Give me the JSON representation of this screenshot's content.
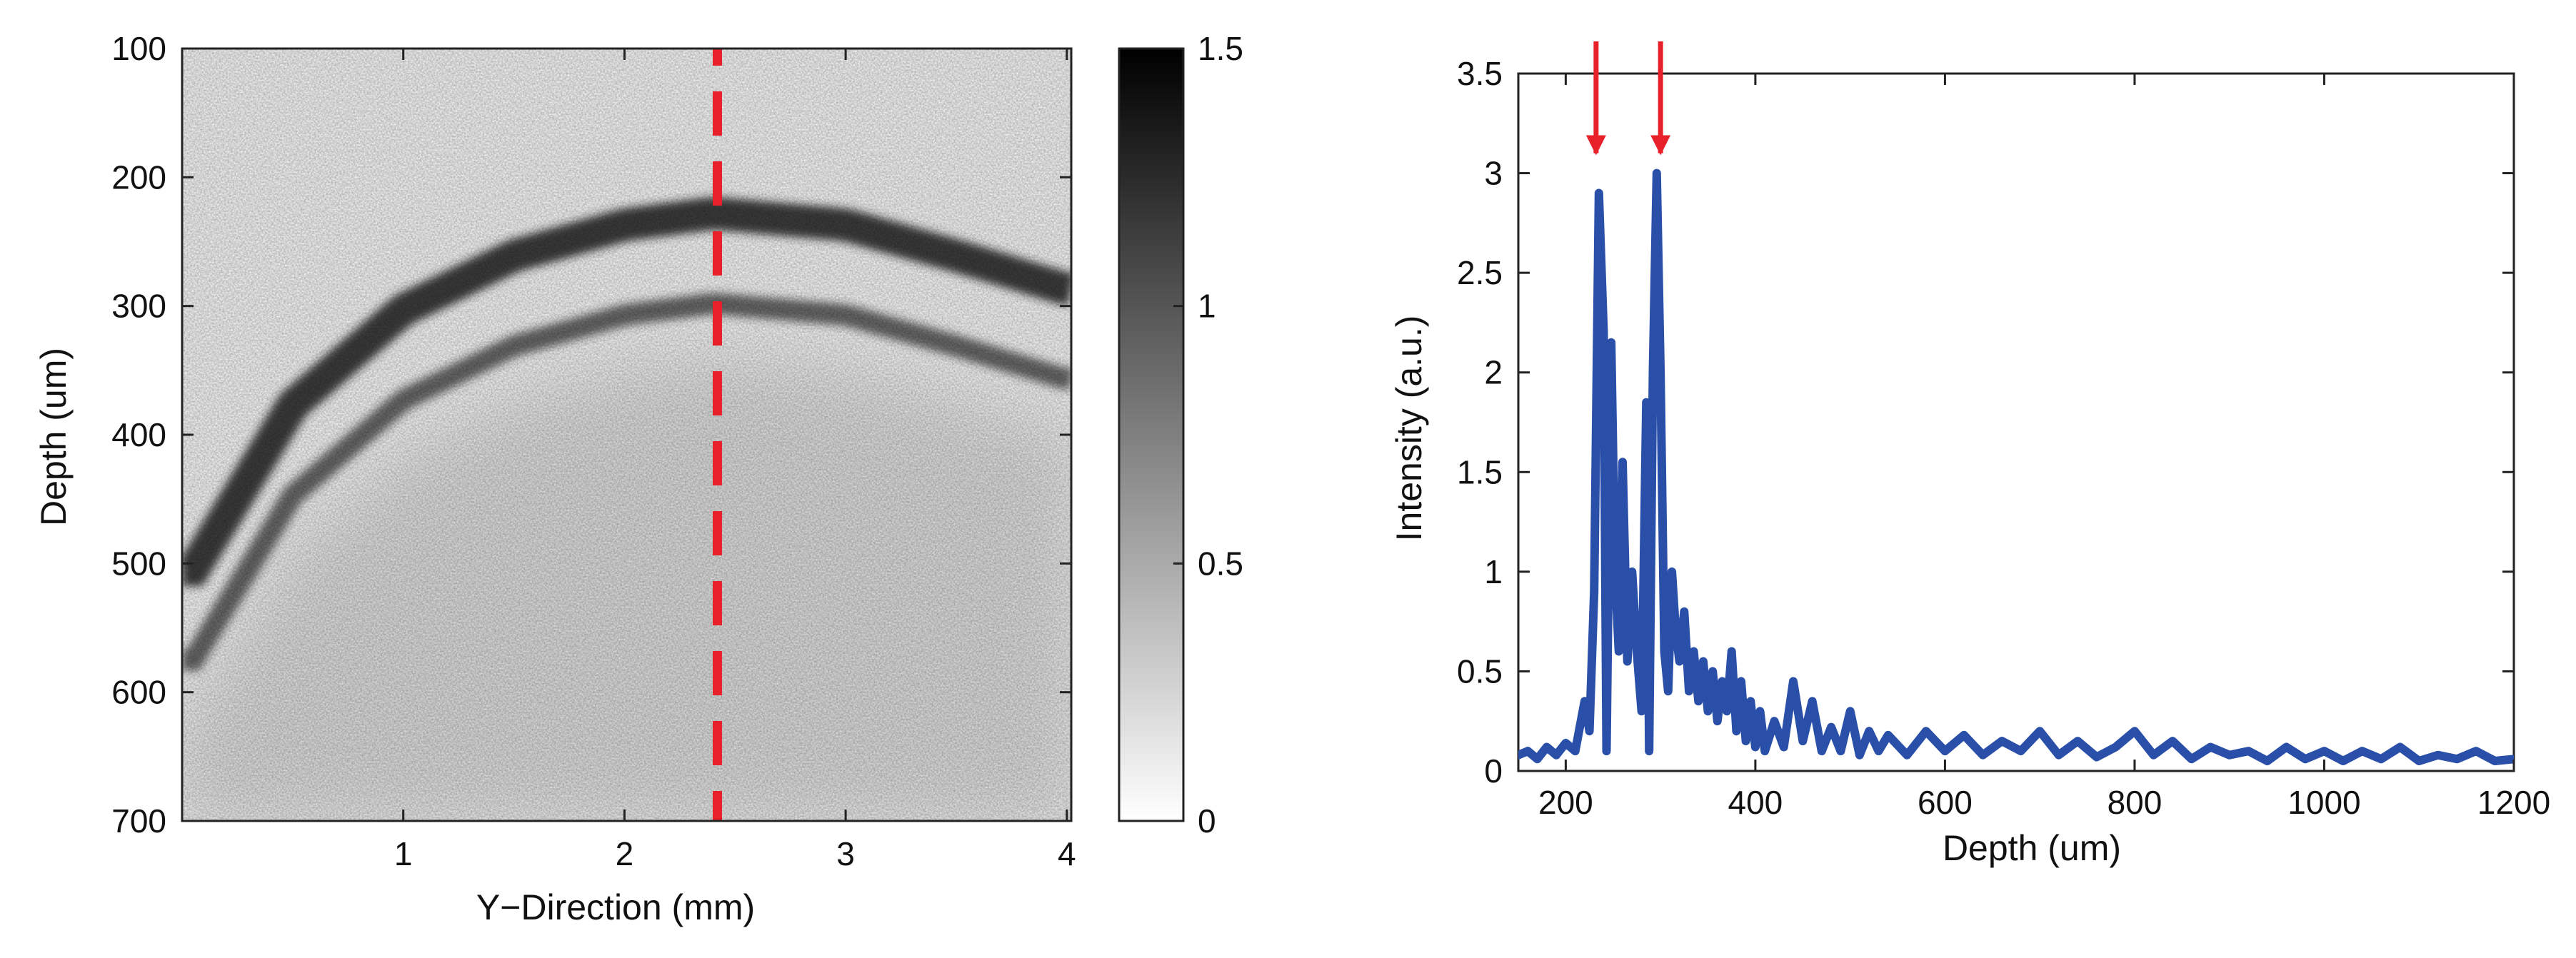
{
  "chart_data": [
    {
      "type": "heatmap",
      "title": "",
      "xlabel": "Y−Direction (mm)",
      "ylabel": "Depth (um)",
      "xlim": [
        0,
        4.02
      ],
      "ylim": [
        700,
        100
      ],
      "xticks": [
        1,
        2,
        3,
        4
      ],
      "xtick_labels": [
        "1",
        "2",
        "3",
        "4"
      ],
      "yticks": [
        100,
        200,
        300,
        400,
        500,
        600,
        700
      ],
      "ytick_labels": [
        "100",
        "200",
        "300",
        "400",
        "500",
        "600",
        "700"
      ],
      "colormap": "gray (white to black)",
      "colorbar": {
        "range": [
          0,
          1.5
        ],
        "ticks": [
          0,
          0.5,
          1,
          1.5
        ],
        "tick_labels": [
          "0",
          "0.5",
          "1",
          "1.5"
        ]
      },
      "surface_profile": {
        "y_mm": [
          0.05,
          0.5,
          1.0,
          1.5,
          2.0,
          2.4,
          3.0,
          3.5,
          4.0
        ],
        "depth_um": [
          480,
          352,
          278,
          236,
          212,
          203,
          212,
          236,
          262
        ]
      },
      "marker_line": {
        "x_mm": 2.42,
        "style": "dashed",
        "color": "#e8202a"
      },
      "grid": false
    },
    {
      "type": "line",
      "title": "",
      "xlabel": "Depth (um)",
      "ylabel": "Intensity (a.u.)",
      "xlim": [
        150,
        1200
      ],
      "ylim": [
        0,
        3.5
      ],
      "xticks": [
        200,
        400,
        600,
        800,
        1000,
        1200
      ],
      "xtick_labels": [
        "200",
        "400",
        "600",
        "800",
        "1000",
        "1200"
      ],
      "yticks": [
        0,
        0.5,
        1,
        1.5,
        2,
        2.5,
        3,
        3.5
      ],
      "ytick_labels": [
        "0",
        "0.5",
        "1",
        "1.5",
        "2",
        "2.5",
        "3",
        "3.5"
      ],
      "grid": false,
      "series": [
        {
          "color": "#2a4fa8",
          "x": [
            150,
            160,
            170,
            180,
            190,
            200,
            210,
            220,
            225,
            230,
            235,
            240,
            243,
            248,
            252,
            256,
            260,
            265,
            270,
            275,
            280,
            285,
            288,
            292,
            296,
            300,
            304,
            308,
            312,
            316,
            320,
            325,
            330,
            335,
            340,
            345,
            350,
            355,
            360,
            365,
            370,
            375,
            380,
            385,
            390,
            395,
            400,
            405,
            410,
            420,
            430,
            440,
            450,
            460,
            470,
            480,
            490,
            500,
            510,
            520,
            530,
            540,
            560,
            580,
            600,
            620,
            640,
            660,
            680,
            700,
            720,
            740,
            760,
            780,
            800,
            820,
            840,
            860,
            880,
            900,
            920,
            940,
            960,
            980,
            1000,
            1020,
            1040,
            1060,
            1080,
            1100,
            1120,
            1140,
            1160,
            1180,
            1200
          ],
          "y": [
            0.08,
            0.1,
            0.06,
            0.12,
            0.08,
            0.14,
            0.1,
            0.35,
            0.2,
            0.9,
            2.9,
            2.2,
            0.1,
            2.15,
            1.0,
            0.6,
            1.55,
            0.55,
            1.0,
            0.6,
            0.3,
            1.85,
            0.1,
            2.0,
            3.0,
            2.0,
            0.6,
            0.4,
            1.0,
            0.7,
            0.55,
            0.8,
            0.4,
            0.6,
            0.35,
            0.55,
            0.3,
            0.5,
            0.25,
            0.45,
            0.3,
            0.6,
            0.2,
            0.45,
            0.15,
            0.35,
            0.12,
            0.3,
            0.1,
            0.25,
            0.12,
            0.45,
            0.15,
            0.35,
            0.1,
            0.22,
            0.1,
            0.3,
            0.08,
            0.2,
            0.1,
            0.18,
            0.08,
            0.2,
            0.1,
            0.18,
            0.08,
            0.15,
            0.1,
            0.2,
            0.08,
            0.15,
            0.07,
            0.12,
            0.2,
            0.08,
            0.15,
            0.06,
            0.12,
            0.08,
            0.1,
            0.05,
            0.12,
            0.06,
            0.1,
            0.05,
            0.1,
            0.06,
            0.12,
            0.05,
            0.08,
            0.06,
            0.1,
            0.05,
            0.06
          ]
        }
      ],
      "annotations": [
        {
          "type": "arrow",
          "color": "#e8202a",
          "x": 232,
          "y_tip": 3.1,
          "y_tail": 3.7
        },
        {
          "type": "arrow",
          "color": "#e8202a",
          "x": 300,
          "y_tip": 3.1,
          "y_tail": 3.7
        }
      ]
    }
  ]
}
